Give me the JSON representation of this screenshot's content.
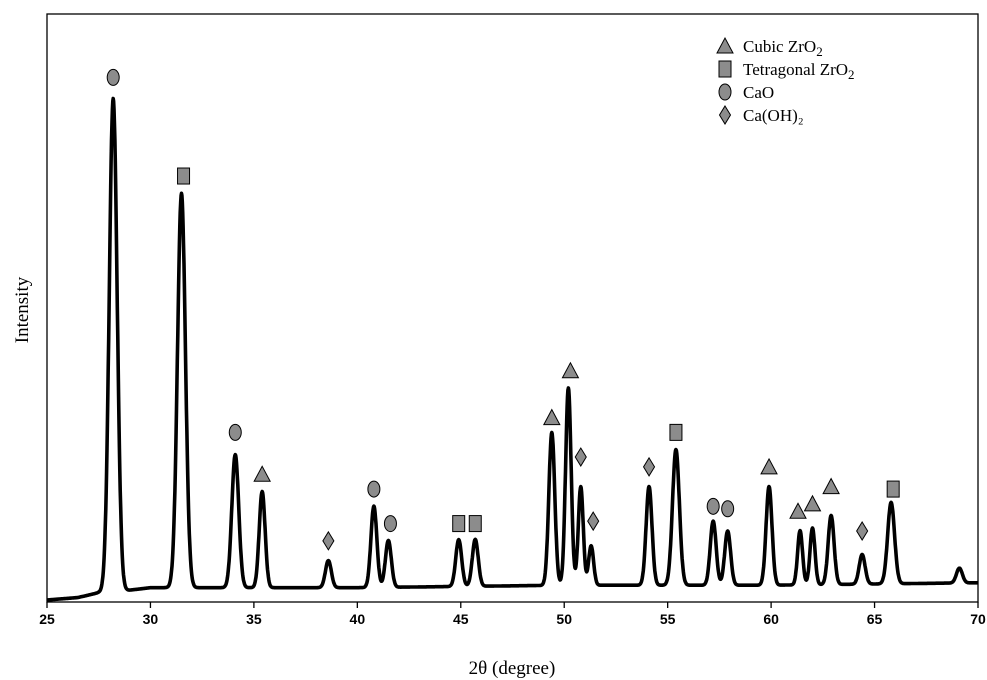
{
  "chart_data": {
    "type": "line",
    "title": "",
    "xlabel": "2θ (degree)",
    "ylabel": "Intensity",
    "xlim": [
      25,
      70
    ],
    "ylim": [
      0,
      100
    ],
    "xticks": [
      25,
      30,
      35,
      40,
      45,
      50,
      55,
      60,
      65,
      70
    ],
    "grid": false,
    "legend_position": "top-right",
    "baseline": [
      [
        25,
        0
      ],
      [
        26.5,
        0.5
      ],
      [
        27.5,
        1.5
      ],
      [
        29,
        2
      ],
      [
        30,
        2.5
      ],
      [
        33,
        2.5
      ],
      [
        40,
        2.5
      ],
      [
        50,
        3
      ],
      [
        60,
        3
      ],
      [
        70,
        3.5
      ]
    ],
    "peaks": [
      {
        "x": 28.2,
        "height": 100,
        "width": 0.4
      },
      {
        "x": 31.5,
        "height": 80,
        "width": 0.4
      },
      {
        "x": 34.1,
        "height": 27,
        "width": 0.35
      },
      {
        "x": 35.4,
        "height": 19.5,
        "width": 0.3
      },
      {
        "x": 38.6,
        "height": 5.5,
        "width": 0.3
      },
      {
        "x": 40.8,
        "height": 16.5,
        "width": 0.3
      },
      {
        "x": 41.5,
        "height": 9.5,
        "width": 0.3
      },
      {
        "x": 44.9,
        "height": 9.5,
        "width": 0.3
      },
      {
        "x": 45.7,
        "height": 9.5,
        "width": 0.3
      },
      {
        "x": 49.4,
        "height": 31,
        "width": 0.3
      },
      {
        "x": 50.2,
        "height": 40,
        "width": 0.28
      },
      {
        "x": 50.8,
        "height": 20,
        "width": 0.25
      },
      {
        "x": 51.3,
        "height": 8,
        "width": 0.25
      },
      {
        "x": 54.1,
        "height": 20,
        "width": 0.3
      },
      {
        "x": 55.4,
        "height": 27.5,
        "width": 0.35
      },
      {
        "x": 57.2,
        "height": 13,
        "width": 0.3
      },
      {
        "x": 57.9,
        "height": 11,
        "width": 0.3
      },
      {
        "x": 59.9,
        "height": 20,
        "width": 0.3
      },
      {
        "x": 61.4,
        "height": 11,
        "width": 0.25
      },
      {
        "x": 62.0,
        "height": 11.5,
        "width": 0.25
      },
      {
        "x": 62.9,
        "height": 14,
        "width": 0.3
      },
      {
        "x": 64.4,
        "height": 6,
        "width": 0.3
      },
      {
        "x": 65.8,
        "height": 16.5,
        "width": 0.35
      },
      {
        "x": 69.1,
        "height": 3,
        "width": 0.3
      }
    ],
    "annotations": [
      {
        "x": 28.2,
        "y": 106,
        "phase": "CaO",
        "shape": "circle"
      },
      {
        "x": 31.6,
        "y": 86,
        "phase": "Tetragonal ZrO2",
        "shape": "square"
      },
      {
        "x": 34.1,
        "y": 34,
        "phase": "CaO",
        "shape": "circle"
      },
      {
        "x": 35.4,
        "y": 25.5,
        "phase": "Cubic ZrO2",
        "shape": "triangle"
      },
      {
        "x": 38.6,
        "y": 12,
        "phase": "Ca(OH)2",
        "shape": "diamond"
      },
      {
        "x": 40.8,
        "y": 22.5,
        "phase": "CaO",
        "shape": "circle"
      },
      {
        "x": 41.6,
        "y": 15.5,
        "phase": "CaO",
        "shape": "circle"
      },
      {
        "x": 44.9,
        "y": 15.5,
        "phase": "Tetragonal ZrO2",
        "shape": "square"
      },
      {
        "x": 45.7,
        "y": 15.5,
        "phase": "Tetragonal ZrO2",
        "shape": "square"
      },
      {
        "x": 49.4,
        "y": 37,
        "phase": "Cubic ZrO2",
        "shape": "triangle"
      },
      {
        "x": 50.3,
        "y": 46.5,
        "phase": "Cubic ZrO2",
        "shape": "triangle"
      },
      {
        "x": 50.8,
        "y": 29,
        "phase": "Ca(OH)2",
        "shape": "diamond"
      },
      {
        "x": 51.4,
        "y": 16,
        "phase": "Ca(OH)2",
        "shape": "diamond"
      },
      {
        "x": 54.1,
        "y": 27,
        "phase": "Ca(OH)2",
        "shape": "diamond"
      },
      {
        "x": 55.4,
        "y": 34,
        "phase": "Tetragonal ZrO2",
        "shape": "square"
      },
      {
        "x": 57.2,
        "y": 19,
        "phase": "CaO",
        "shape": "circle"
      },
      {
        "x": 57.9,
        "y": 18.5,
        "phase": "CaO",
        "shape": "circle"
      },
      {
        "x": 59.9,
        "y": 27,
        "phase": "Cubic ZrO2",
        "shape": "triangle"
      },
      {
        "x": 61.3,
        "y": 18,
        "phase": "Cubic ZrO2",
        "shape": "triangle"
      },
      {
        "x": 62.0,
        "y": 19.5,
        "phase": "Cubic ZrO2",
        "shape": "triangle"
      },
      {
        "x": 62.9,
        "y": 23,
        "phase": "Cubic ZrO2",
        "shape": "triangle"
      },
      {
        "x": 64.4,
        "y": 14,
        "phase": "Ca(OH)2",
        "shape": "diamond"
      },
      {
        "x": 65.9,
        "y": 22.5,
        "phase": "Tetragonal ZrO2",
        "shape": "square"
      }
    ],
    "legend": [
      {
        "shape": "triangle",
        "label": "Cubic ZrO",
        "sub": "2"
      },
      {
        "shape": "square",
        "label": "Tetragonal ZrO",
        "sub": "2"
      },
      {
        "shape": "circle",
        "label": "CaO",
        "sub": ""
      },
      {
        "shape": "diamond",
        "label": "Ca(OH)₂",
        "sub": ""
      }
    ],
    "colors": {
      "line": "#000000",
      "marker_fill": "#8c8c8c",
      "marker_stroke": "#000000"
    }
  }
}
